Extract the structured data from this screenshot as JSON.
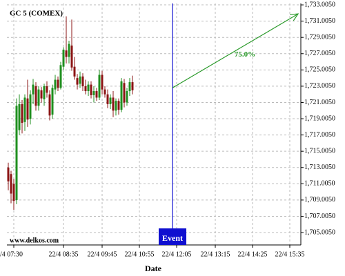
{
  "chart_data": {
    "type": "candlestick",
    "title": "GC 5 (COMEX)",
    "watermark": "www.delkos.com",
    "xlabel": "Date",
    "up_color": "#1f8f1f",
    "down_color": "#8b1414",
    "grid": true,
    "open": [
      1713.0,
      1712.2,
      1711.0,
      1709.0,
      1717.6,
      1720.8,
      1718.6,
      1721.5,
      1719.0,
      1722.0,
      1723.0,
      1720.6,
      1722.5,
      1721.4,
      1723.0,
      1722.0,
      1719.5,
      1722.6,
      1723.8,
      1722.8,
      1725.4,
      1727.4,
      1726.6,
      1728.0,
      1725.4,
      1724.0,
      1723.3,
      1724.2,
      1723.0,
      1722.4,
      1723.2,
      1721.9,
      1722.4,
      1721.6,
      1724.4,
      1722.6,
      1722.0,
      1720.8,
      1721.6,
      1720.0,
      1721.2,
      1720.1,
      1723.4,
      1721.0,
      1722.4,
      1723.5
    ],
    "high": [
      1713.6,
      1712.6,
      1711.6,
      1721.5,
      1722.0,
      1721.3,
      1722.0,
      1723.8,
      1722.5,
      1723.9,
      1723.5,
      1723.0,
      1722.9,
      1723.3,
      1723.6,
      1722.5,
      1723.2,
      1724.4,
      1724.2,
      1726.0,
      1727.8,
      1731.6,
      1728.6,
      1731.2,
      1726.6,
      1724.5,
      1724.8,
      1724.6,
      1723.8,
      1723.6,
      1723.6,
      1723.0,
      1722.8,
      1725.0,
      1724.9,
      1723.0,
      1722.6,
      1722.0,
      1722.4,
      1721.5,
      1721.5,
      1724.0,
      1723.9,
      1722.8,
      1724.0,
      1724.3
    ],
    "low": [
      1710.2,
      1708.6,
      1707.8,
      1708.5,
      1717.0,
      1717.2,
      1717.5,
      1718.0,
      1718.3,
      1720.8,
      1720.0,
      1720.0,
      1721.0,
      1720.6,
      1721.6,
      1718.8,
      1719.0,
      1722.0,
      1722.4,
      1722.6,
      1725.0,
      1725.8,
      1725.8,
      1724.9,
      1723.8,
      1722.6,
      1722.8,
      1722.4,
      1722.0,
      1721.8,
      1721.5,
      1721.0,
      1721.2,
      1721.3,
      1722.0,
      1721.6,
      1720.3,
      1720.2,
      1719.2,
      1719.4,
      1719.5,
      1719.8,
      1720.4,
      1720.6,
      1721.8,
      1722.0
    ],
    "close": [
      1711.3,
      1709.8,
      1708.9,
      1720.6,
      1720.8,
      1718.5,
      1721.6,
      1718.9,
      1722.0,
      1723.2,
      1720.6,
      1722.6,
      1721.5,
      1723.0,
      1722.2,
      1719.4,
      1722.8,
      1723.8,
      1722.8,
      1725.6,
      1727.5,
      1726.6,
      1728.2,
      1725.3,
      1724.2,
      1723.2,
      1724.2,
      1723.0,
      1722.4,
      1723.2,
      1721.9,
      1722.4,
      1721.6,
      1724.4,
      1722.6,
      1722.0,
      1720.8,
      1721.6,
      1720.0,
      1721.2,
      1720.1,
      1723.6,
      1721.0,
      1722.4,
      1723.5,
      1722.5
    ],
    "xlim": [
      -0.5,
      106
    ],
    "xticks": [
      {
        "value": 2,
        "label": "/4 07:30"
      },
      {
        "value": 20,
        "label": "22/4 08:35"
      },
      {
        "value": 34,
        "label": "22/4 09:45"
      },
      {
        "value": 47.5,
        "label": "22/4 10:55"
      },
      {
        "value": 61,
        "label": "22/4 12:05"
      },
      {
        "value": 75,
        "label": "22/4 13:15"
      },
      {
        "value": 88.5,
        "label": "22/4 14:25"
      },
      {
        "value": 102,
        "label": "22/4 15:35"
      }
    ],
    "ylim": [
      1703.48,
      1733.18
    ],
    "yticks": [
      {
        "value": 1705.005,
        "label": "1,705.0050"
      },
      {
        "value": 1707.005,
        "label": "1,707.0050"
      },
      {
        "value": 1709.005,
        "label": "1,709.0050"
      },
      {
        "value": 1711.005,
        "label": "1,711.0050"
      },
      {
        "value": 1713.005,
        "label": "1,713.0050"
      },
      {
        "value": 1715.005,
        "label": "1,715.0050"
      },
      {
        "value": 1717.005,
        "label": "1,717.0050"
      },
      {
        "value": 1719.005,
        "label": "1,719.0050"
      },
      {
        "value": 1721.005,
        "label": "1,721.0050"
      },
      {
        "value": 1723.005,
        "label": "1,723.0050"
      },
      {
        "value": 1725.005,
        "label": "1,725.0050"
      },
      {
        "value": 1727.005,
        "label": "1,727.0050"
      },
      {
        "value": 1729.005,
        "label": "1,729.0050"
      },
      {
        "value": 1731.005,
        "label": "1,731.0050"
      },
      {
        "value": 1733.005,
        "label": "1,733.0050"
      }
    ],
    "event": {
      "x": 59.5,
      "label": "Event",
      "color": "#1010d0"
    },
    "projection": {
      "x": [
        59.5,
        105
      ],
      "y": [
        1722.8,
        1731.9
      ],
      "label": "75.0%",
      "color": "#2a9a2a"
    }
  }
}
